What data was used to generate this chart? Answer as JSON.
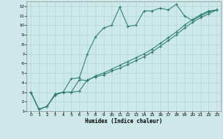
{
  "xlabel": "Humidex (Indice chaleur)",
  "bg_color": "#cce8e8",
  "line_color": "#2d7d6e",
  "grid_color": "#b0d4d4",
  "xlim": [
    -0.5,
    23.5
  ],
  "ylim": [
    1,
    12.5
  ],
  "xticks": [
    0,
    1,
    2,
    3,
    4,
    5,
    6,
    7,
    8,
    9,
    10,
    11,
    12,
    13,
    14,
    15,
    16,
    17,
    18,
    19,
    20,
    21,
    22,
    23
  ],
  "yticks": [
    1,
    2,
    3,
    4,
    5,
    6,
    7,
    8,
    9,
    10,
    11,
    12
  ],
  "line1_x": [
    0,
    1,
    2,
    3,
    4,
    5,
    6,
    7,
    8,
    9,
    10,
    11,
    12,
    13,
    14,
    15,
    16,
    17,
    18,
    19,
    20,
    21,
    22,
    23
  ],
  "line1_y": [
    3,
    1.2,
    1.5,
    2.7,
    3.0,
    3.0,
    4.3,
    4.2,
    4.7,
    5.0,
    5.4,
    5.8,
    6.2,
    6.6,
    7.0,
    7.5,
    8.1,
    8.7,
    9.3,
    10.0,
    10.6,
    11.1,
    11.5,
    11.6
  ],
  "line2_x": [
    0,
    1,
    2,
    3,
    4,
    5,
    6,
    7,
    8,
    9,
    10,
    11,
    12,
    13,
    14,
    15,
    16,
    17,
    18,
    19,
    20,
    21,
    22,
    23
  ],
  "line2_y": [
    3,
    1.2,
    1.5,
    2.8,
    3.0,
    4.4,
    4.5,
    7.0,
    8.8,
    9.7,
    10.0,
    11.9,
    9.9,
    10.0,
    11.5,
    11.5,
    11.8,
    11.6,
    12.2,
    11.0,
    10.5,
    11.0,
    11.4,
    11.6
  ],
  "line3_x": [
    0,
    1,
    2,
    3,
    4,
    5,
    6,
    7,
    8,
    9,
    10,
    11,
    12,
    13,
    14,
    15,
    16,
    17,
    18,
    19,
    20,
    21,
    22,
    23
  ],
  "line3_y": [
    3,
    1.2,
    1.5,
    2.7,
    3.0,
    3.0,
    3.1,
    4.3,
    4.6,
    4.8,
    5.2,
    5.5,
    5.9,
    6.3,
    6.7,
    7.2,
    7.8,
    8.4,
    9.0,
    9.7,
    10.3,
    10.8,
    11.2,
    11.6
  ],
  "marker_size": 2,
  "line_width": 0.8
}
